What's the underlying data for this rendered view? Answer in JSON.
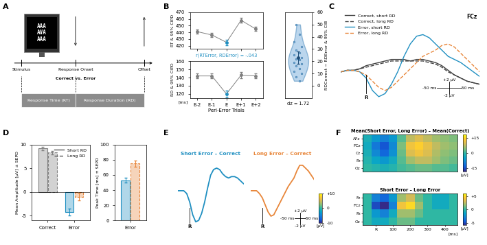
{
  "chart_data": [
    {
      "type": "diagram",
      "panel": "A",
      "stimulus_rows": [
        "AAA",
        "AVA",
        "AAA"
      ],
      "events": [
        "Stimulus",
        "Response Onset",
        "Offset"
      ],
      "outcome": "Correct vs. Error",
      "phases": [
        "Response Time (RT)",
        "Response Duration (RD)"
      ]
    },
    {
      "type": "line",
      "panel": "B",
      "categories": [
        "E-2",
        "E-1",
        "E",
        "E+1",
        "E+2"
      ],
      "xlabel": "Peri-Error Trials",
      "x_unit": "[ms]",
      "subplots": [
        {
          "ylabel": "RT & 95% CIPD",
          "values": [
            441,
            436,
            425,
            458,
            445
          ],
          "errors": [
            3,
            3,
            4,
            4,
            3
          ],
          "colors": [
            "#7f7f7f",
            "#7f7f7f",
            "#1f8fc1",
            "#7f7f7f",
            "#7f7f7f"
          ],
          "ylim": [
            415,
            470
          ],
          "yticks": [
            420,
            430,
            440,
            450,
            460,
            470
          ]
        },
        {
          "ylabel": "RD & 95% CIPD",
          "values": [
            142,
            142,
            120,
            143,
            142
          ],
          "errors": [
            3,
            3,
            4,
            4,
            3
          ],
          "colors": [
            "#7f7f7f",
            "#7f7f7f",
            "#1f8fc1",
            "#7f7f7f",
            "#7f7f7f"
          ],
          "ylim": [
            115,
            160
          ],
          "yticks": [
            120,
            130,
            140,
            150,
            160
          ]
        }
      ],
      "annotation": {
        "text": "r(RTError, RDError) = -.043",
        "color": "#1f8fc1"
      },
      "violin": {
        "type": "violin",
        "ylabel": "RDCorrect − RDError & 95% CIB",
        "values": [
          4,
          7,
          10,
          12,
          14,
          16,
          18,
          19,
          21,
          22,
          23,
          25,
          27,
          29,
          32,
          36,
          42,
          50
        ],
        "mean": 23,
        "ci": [
          18,
          28
        ],
        "ylim": [
          -10,
          60
        ],
        "yticks": [
          0,
          10,
          20,
          30,
          40,
          50,
          60
        ],
        "color": "#9ec5e6",
        "effect_size": "dz = 1.72"
      }
    },
    {
      "type": "line",
      "panel": "C",
      "x": [
        -100,
        -75,
        -50,
        -25,
        0,
        25,
        50,
        75,
        100,
        125,
        150,
        175,
        200,
        225,
        250,
        275,
        300,
        325,
        350,
        375,
        400,
        425,
        450
      ],
      "series": [
        {
          "name": "Correct, short RD",
          "color": "#404040",
          "line_style": "solid",
          "values": [
            0,
            0.5,
            0.5,
            1,
            2,
            2.5,
            3,
            3.5,
            4,
            4,
            4,
            3.5,
            4,
            4,
            3.5,
            3,
            2,
            0.5,
            -1,
            -2,
            -3,
            -3.5,
            -4
          ]
        },
        {
          "name": "Correct, long RD",
          "color": "#404040",
          "line_style": "dashed",
          "values": [
            0,
            0.5,
            0.5,
            1,
            1.5,
            2,
            2.5,
            3,
            3.5,
            3.5,
            3.5,
            3.5,
            3.5,
            3.5,
            3,
            2.5,
            1.5,
            0,
            -1,
            -2,
            -3,
            -3.5,
            -4
          ]
        },
        {
          "name": "Error, short RD",
          "color": "#1f8fc1",
          "line_style": "solid",
          "values": [
            0,
            0.5,
            0.5,
            0,
            -2,
            -6,
            -8,
            -7,
            -4,
            0,
            5,
            9,
            11.5,
            12,
            11,
            9,
            7,
            5,
            4,
            3,
            1.5,
            0,
            -1.5
          ]
        },
        {
          "name": "Error, long RD",
          "color": "#e8863a",
          "line_style": "dashed",
          "values": [
            0,
            0.5,
            0.5,
            0,
            -1,
            -3,
            -5,
            -6,
            -5,
            -3,
            -1,
            1,
            3,
            5,
            6,
            7,
            8.5,
            9,
            8,
            6,
            4,
            2,
            0
          ]
        }
      ],
      "xlim": [
        -100,
        450
      ],
      "ylim": [
        -10,
        20
      ],
      "tick_labels": false,
      "legend": "upper left",
      "electrode": "FCz",
      "response": {
        "label": "R",
        "x": 0
      },
      "scale_bar": {
        "ms": 50,
        "uV": 2,
        "labels": [
          "+2 µV",
          "-50 ms",
          "50 ms",
          "-2 µV"
        ]
      }
    },
    {
      "type": "bar",
      "panel": "D",
      "categories": [
        "Correct",
        "Error"
      ],
      "ylabel": "Mean Amplitude [µV] ± SEPD",
      "ylim": [
        -6,
        10
      ],
      "yticks": [
        -5,
        0,
        5,
        10
      ],
      "legend": "upper right",
      "series": [
        {
          "name": "Short RD",
          "color": "#595959",
          "line_style": "solid",
          "colors": [
            "#808080",
            "#1f8fc1"
          ],
          "values": [
            9.2,
            -4.2
          ],
          "errors": [
            0.35,
            0.7
          ]
        },
        {
          "name": "Long RD",
          "color": "#595959",
          "line_style": "dashed",
          "colors": [
            "#808080",
            "#e8863a"
          ],
          "values": [
            8.3,
            -1.0
          ],
          "errors": [
            0.4,
            0.8
          ]
        }
      ]
    },
    {
      "type": "bar",
      "categories": [
        "Error"
      ],
      "ylabel": "Peak Time [ms] ± SEPD",
      "ylim": [
        0,
        100
      ],
      "yticks": [
        0,
        20,
        40,
        60,
        80,
        100
      ],
      "series": [
        {
          "line_style": "solid",
          "colors": [
            "#1f8fc1"
          ],
          "values": [
            53
          ],
          "errors": [
            3
          ]
        },
        {
          "line_style": "dashed",
          "colors": [
            "#e8863a"
          ],
          "values": [
            75
          ],
          "errors": [
            4
          ]
        }
      ]
    },
    {
      "type": "line",
      "panel": "E",
      "x": [
        -100,
        -75,
        -50,
        -25,
        0,
        25,
        50,
        75,
        100,
        125,
        150,
        175,
        200,
        225,
        250,
        275,
        300,
        325,
        350,
        375,
        400,
        425,
        450
      ],
      "xlim": [
        -100,
        450
      ],
      "ylim": [
        -14,
        12
      ],
      "tick_labels": false,
      "response": {
        "label": "R",
        "x": 0
      },
      "subplots": [
        {
          "title": "Short Error – Correct",
          "color": "#1f8fc1",
          "values": [
            0,
            0,
            0,
            -1,
            -4,
            -8.5,
            -11,
            -10.5,
            -8,
            -4,
            1,
            5.5,
            7.5,
            8,
            7.5,
            6,
            5,
            4.5,
            5,
            5,
            4.5,
            3.5,
            2.5
          ]
        },
        {
          "title": "Long Error – Correct",
          "color": "#e8863a",
          "values": [
            0,
            0,
            0,
            -1,
            -2.5,
            -5,
            -7.5,
            -9,
            -8.5,
            -6.5,
            -4.5,
            -2.5,
            -0.5,
            1.5,
            3,
            4.5,
            7,
            9,
            9,
            8,
            7,
            5.5,
            4
          ]
        }
      ],
      "scale_bar": {
        "ms": 50,
        "uV": 2,
        "labels": [
          "+2 µV",
          "-50 ms",
          "50 ms",
          "-2 µV"
        ]
      },
      "colorbar": {
        "range": [
          -10,
          10
        ],
        "ticks": [
          {
            "value": 10,
            "label": "+10"
          },
          0,
          -10
        ],
        "label": "[µV]"
      }
    },
    {
      "type": "heatmap",
      "panel": "F",
      "title": "Mean(Short Error, Long Error) – Mean(Correct)",
      "x": [
        -50,
        0,
        50,
        100,
        150,
        200,
        250,
        300,
        350,
        400,
        450
      ],
      "xlim": [
        -75,
        475
      ],
      "rows": [
        "AFz",
        "FCz",
        "Cz",
        "Pz",
        "Oz"
      ],
      "cells": [
        [
          -2,
          -6,
          -9,
          -6,
          2,
          8,
          10,
          8,
          6,
          5,
          4
        ],
        [
          -3,
          -10,
          -14,
          -8,
          4,
          12,
          14,
          11,
          8,
          6,
          5
        ],
        [
          -2,
          -8,
          -12,
          -7,
          3,
          10,
          12,
          10,
          7,
          5,
          4
        ],
        [
          -1,
          -4,
          -6,
          -3,
          2,
          6,
          8,
          8,
          6,
          4,
          3
        ],
        [
          0,
          -1,
          -2,
          -1,
          1,
          2,
          3,
          3,
          2,
          2,
          1
        ]
      ],
      "tick_labels": "y",
      "colorbar": {
        "range": [
          -18,
          18
        ],
        "ticks": [
          {
            "value": 15,
            "label": "+15"
          },
          0,
          -15
        ],
        "label": "[µV]"
      }
    },
    {
      "type": "heatmap",
      "title": "Short Error – Long Error",
      "x": [
        -50,
        0,
        50,
        100,
        150,
        200,
        250,
        300,
        350,
        400,
        450
      ],
      "xlim": [
        -75,
        475
      ],
      "xticks": [
        {
          "value": 0,
          "label": "R"
        },
        100,
        200,
        300,
        400
      ],
      "xlabel": "[ms]",
      "rows": [
        "Fz",
        "FCz",
        "Pz",
        "Oz"
      ],
      "cells": [
        [
          0,
          -3,
          -4,
          -2,
          2,
          3,
          1,
          0,
          -1,
          -1,
          0
        ],
        [
          0,
          -5,
          -6,
          -3,
          4,
          5,
          2,
          0,
          -1,
          -1,
          0
        ],
        [
          0,
          -2,
          -3,
          -1,
          2,
          2,
          1,
          0,
          0,
          0,
          0
        ],
        [
          0,
          -1,
          -1,
          0,
          1,
          1,
          0,
          0,
          0,
          0,
          0
        ]
      ],
      "colorbar": {
        "range": [
          -6,
          6
        ],
        "ticks": [
          {
            "value": 5,
            "label": "+5"
          },
          0,
          -5
        ],
        "label": "[µV]"
      }
    }
  ]
}
